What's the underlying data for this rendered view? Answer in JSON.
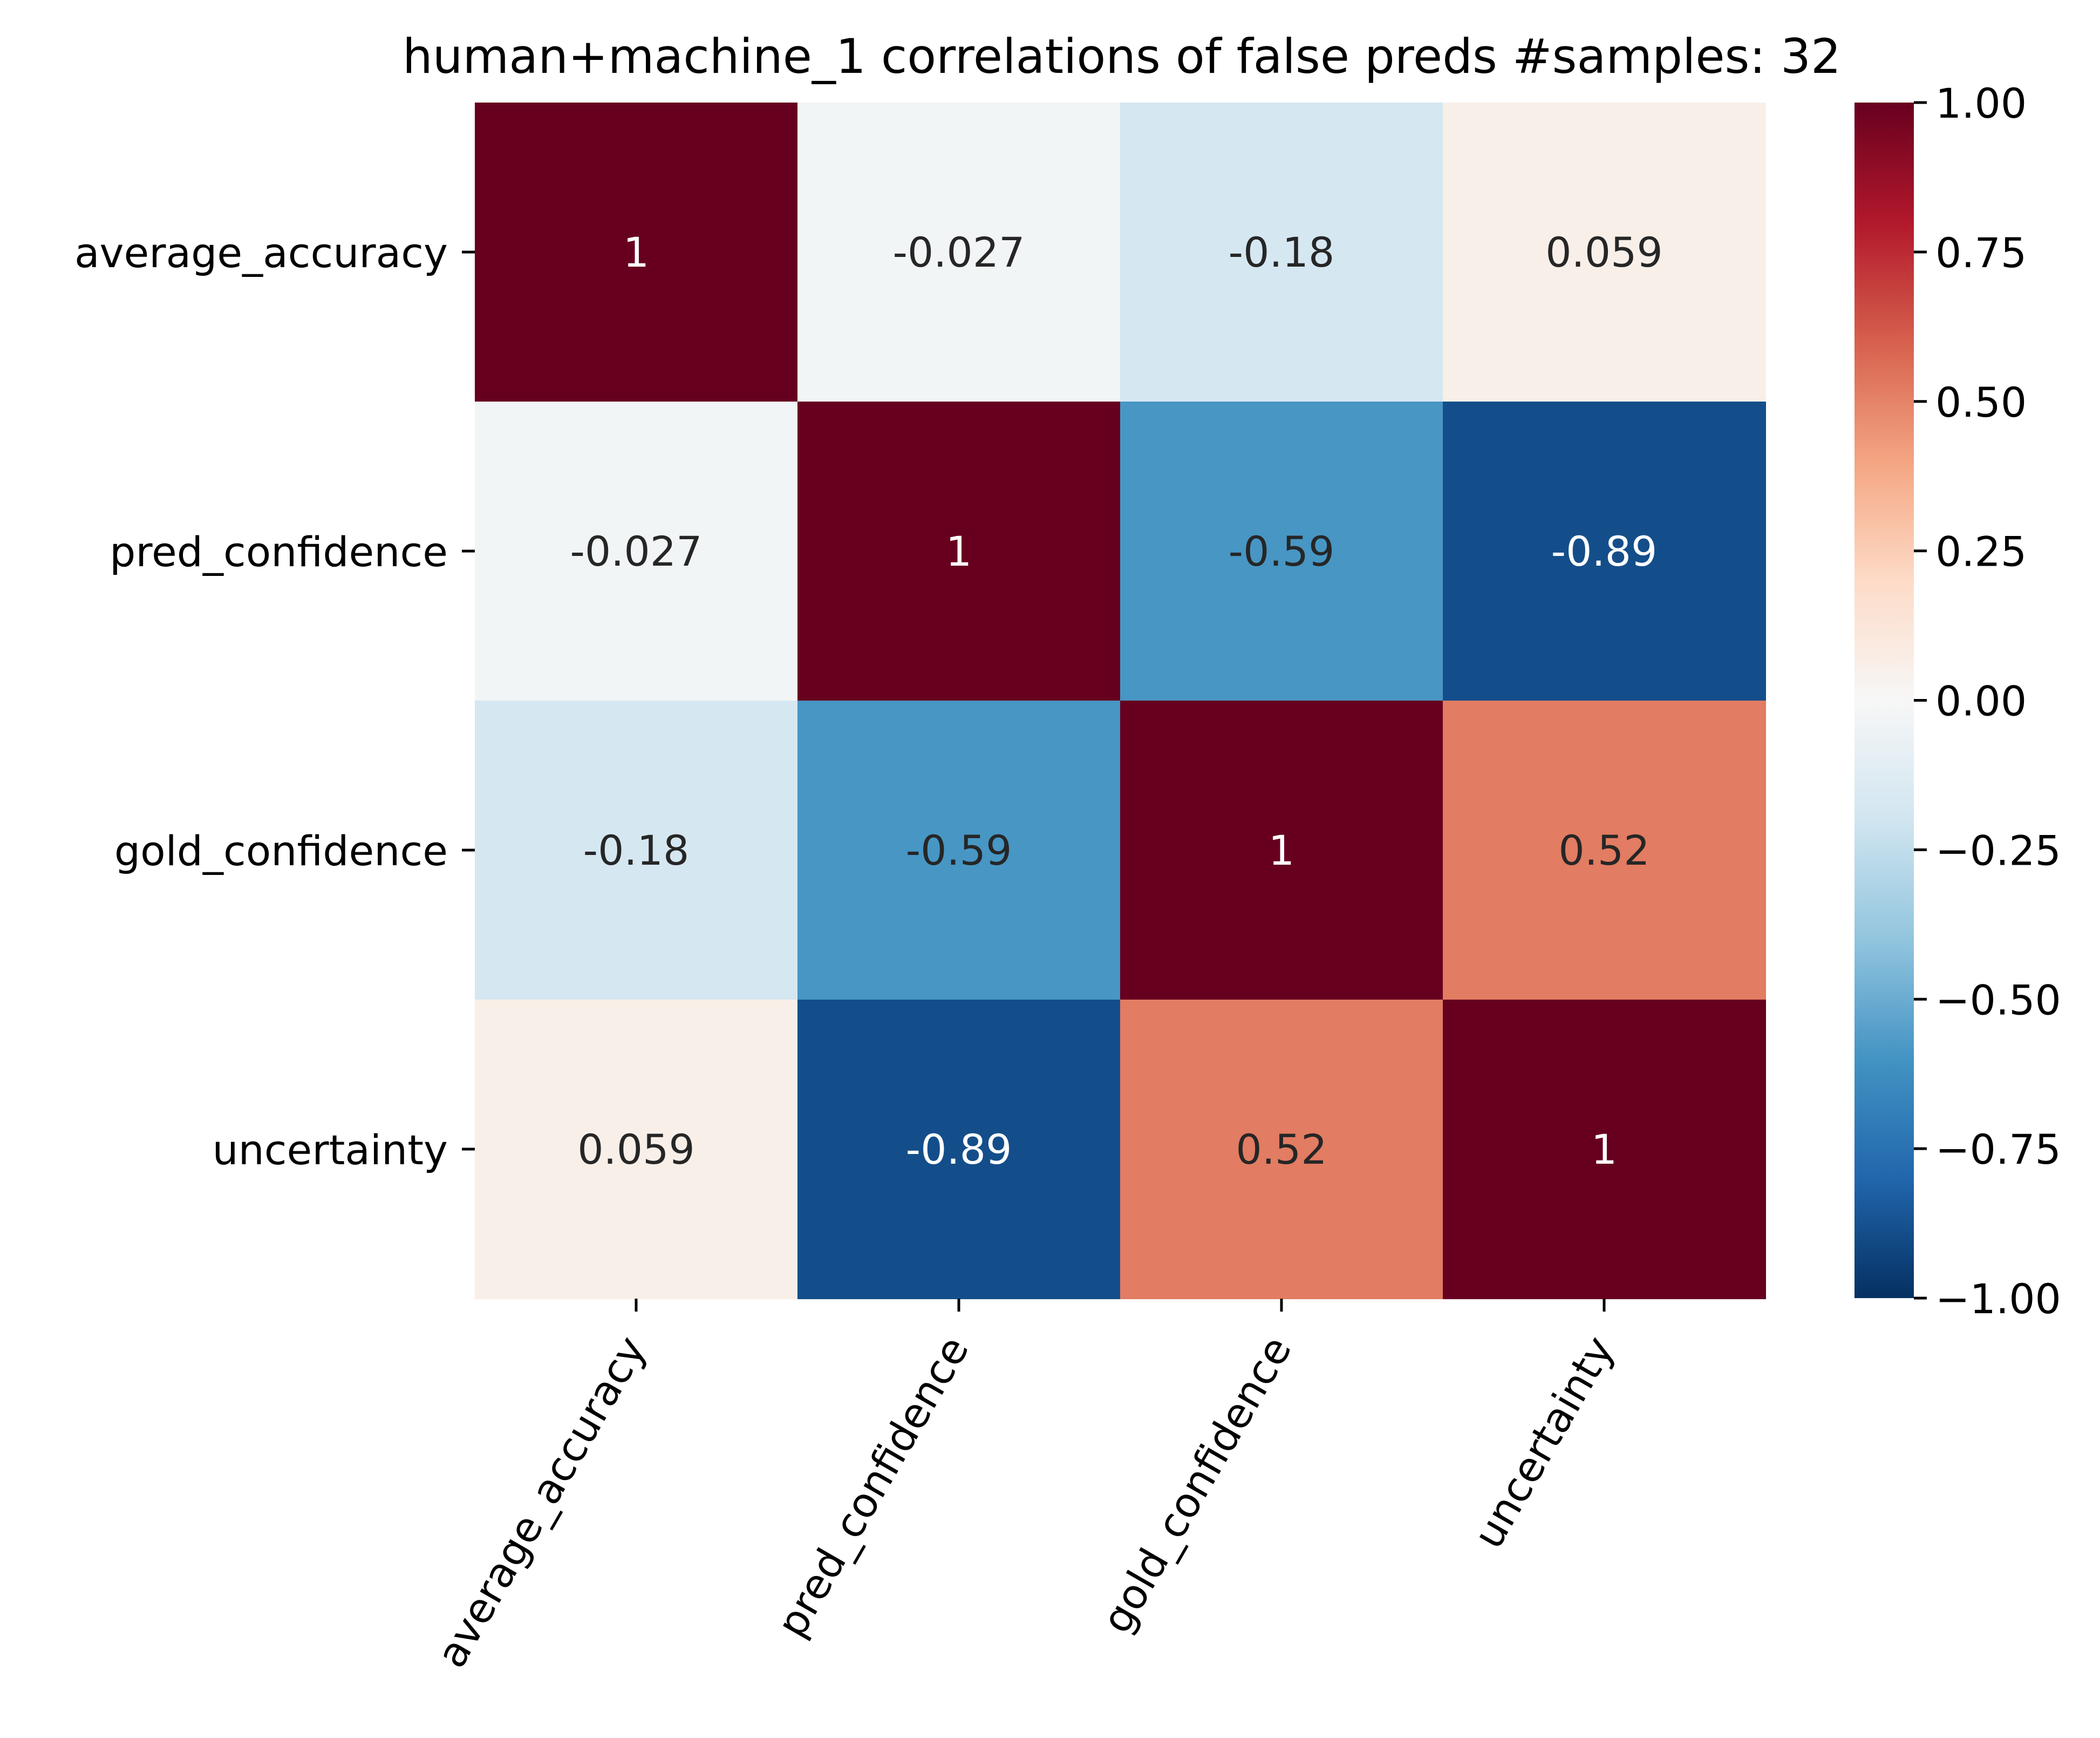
{
  "chart_data": {
    "type": "heatmap",
    "title": "human+machine_1 correlations of false preds #samples: 32",
    "xlabel": "",
    "ylabel": "",
    "rows": [
      "average_accuracy",
      "pred_confidence",
      "gold_confidence",
      "uncertainty"
    ],
    "columns": [
      "average_accuracy",
      "pred_confidence",
      "gold_confidence",
      "uncertainty"
    ],
    "values": [
      [
        1,
        -0.027,
        -0.18,
        0.059
      ],
      [
        -0.027,
        1,
        -0.59,
        -0.89
      ],
      [
        -0.18,
        -0.59,
        1,
        0.52
      ],
      [
        0.059,
        -0.89,
        0.52,
        1
      ]
    ],
    "cell_labels": [
      [
        "1",
        "-0.027",
        "-0.18",
        "0.059"
      ],
      [
        "-0.027",
        "1",
        "-0.59",
        "-0.89"
      ],
      [
        "-0.18",
        "-0.59",
        "1",
        "0.52"
      ],
      [
        "0.059",
        "-0.89",
        "0.52",
        "1"
      ]
    ],
    "colorbar": {
      "colormap": "RdBu_r",
      "vmin": -1.0,
      "vmax": 1.0,
      "ticks": [
        -1.0,
        -0.75,
        -0.5,
        -0.25,
        0.0,
        0.25,
        0.5,
        0.75,
        1.0
      ],
      "tick_labels": [
        "−1.00",
        "−0.75",
        "−0.50",
        "−0.25",
        "0.00",
        "0.25",
        "0.50",
        "0.75",
        "1.00"
      ]
    },
    "grid": false,
    "legend": "colorbar-right"
  }
}
